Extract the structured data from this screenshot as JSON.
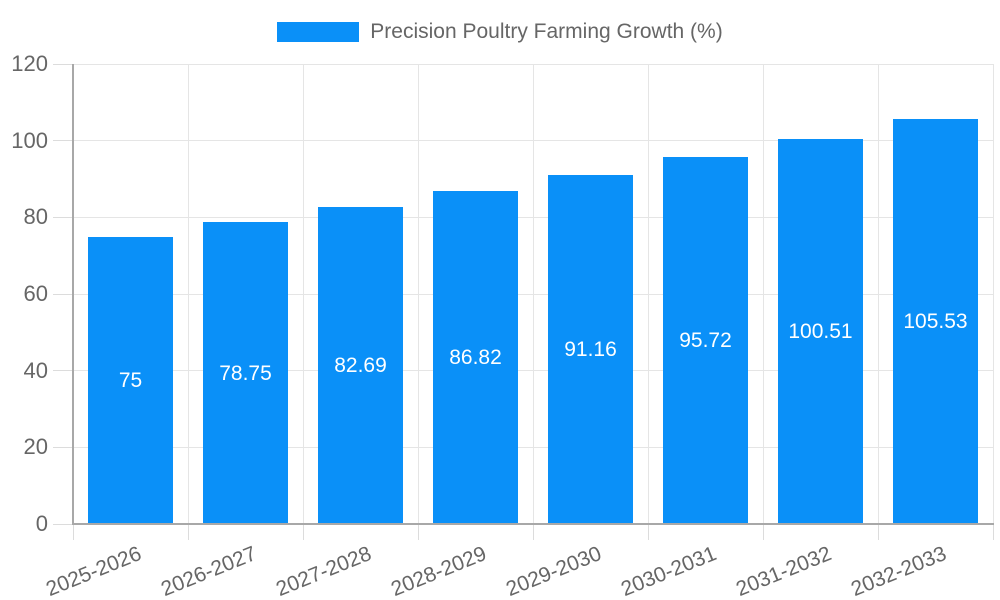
{
  "chart_data": {
    "type": "bar",
    "title": "Precision Poultry Farming Growth (%)",
    "categories": [
      "2025-2026",
      "2026-2027",
      "2027-2028",
      "2028-2029",
      "2029-2030",
      "2030-2031",
      "2031-2032",
      "2032-2033"
    ],
    "values": [
      75,
      78.75,
      82.69,
      86.82,
      91.16,
      95.72,
      100.51,
      105.53
    ],
    "value_labels": [
      "75",
      "78.75",
      "82.69",
      "86.82",
      "91.16",
      "95.72",
      "100.51",
      "105.53"
    ],
    "xlabel": "",
    "ylabel": "",
    "ylim": [
      0,
      120
    ],
    "yticks": [
      0,
      20,
      40,
      60,
      80,
      100,
      120
    ],
    "grid": true,
    "legend_position": "top",
    "colors": {
      "bar_fill": "#0a90f8",
      "value_label_text": "#ffffff",
      "tick_text": "#666666",
      "legend_text": "#666666",
      "gridline": "#e5e5e5",
      "tick_mark": "#dcdcdc",
      "axis_line": "#a8a8a8",
      "background": "#ffffff"
    }
  }
}
